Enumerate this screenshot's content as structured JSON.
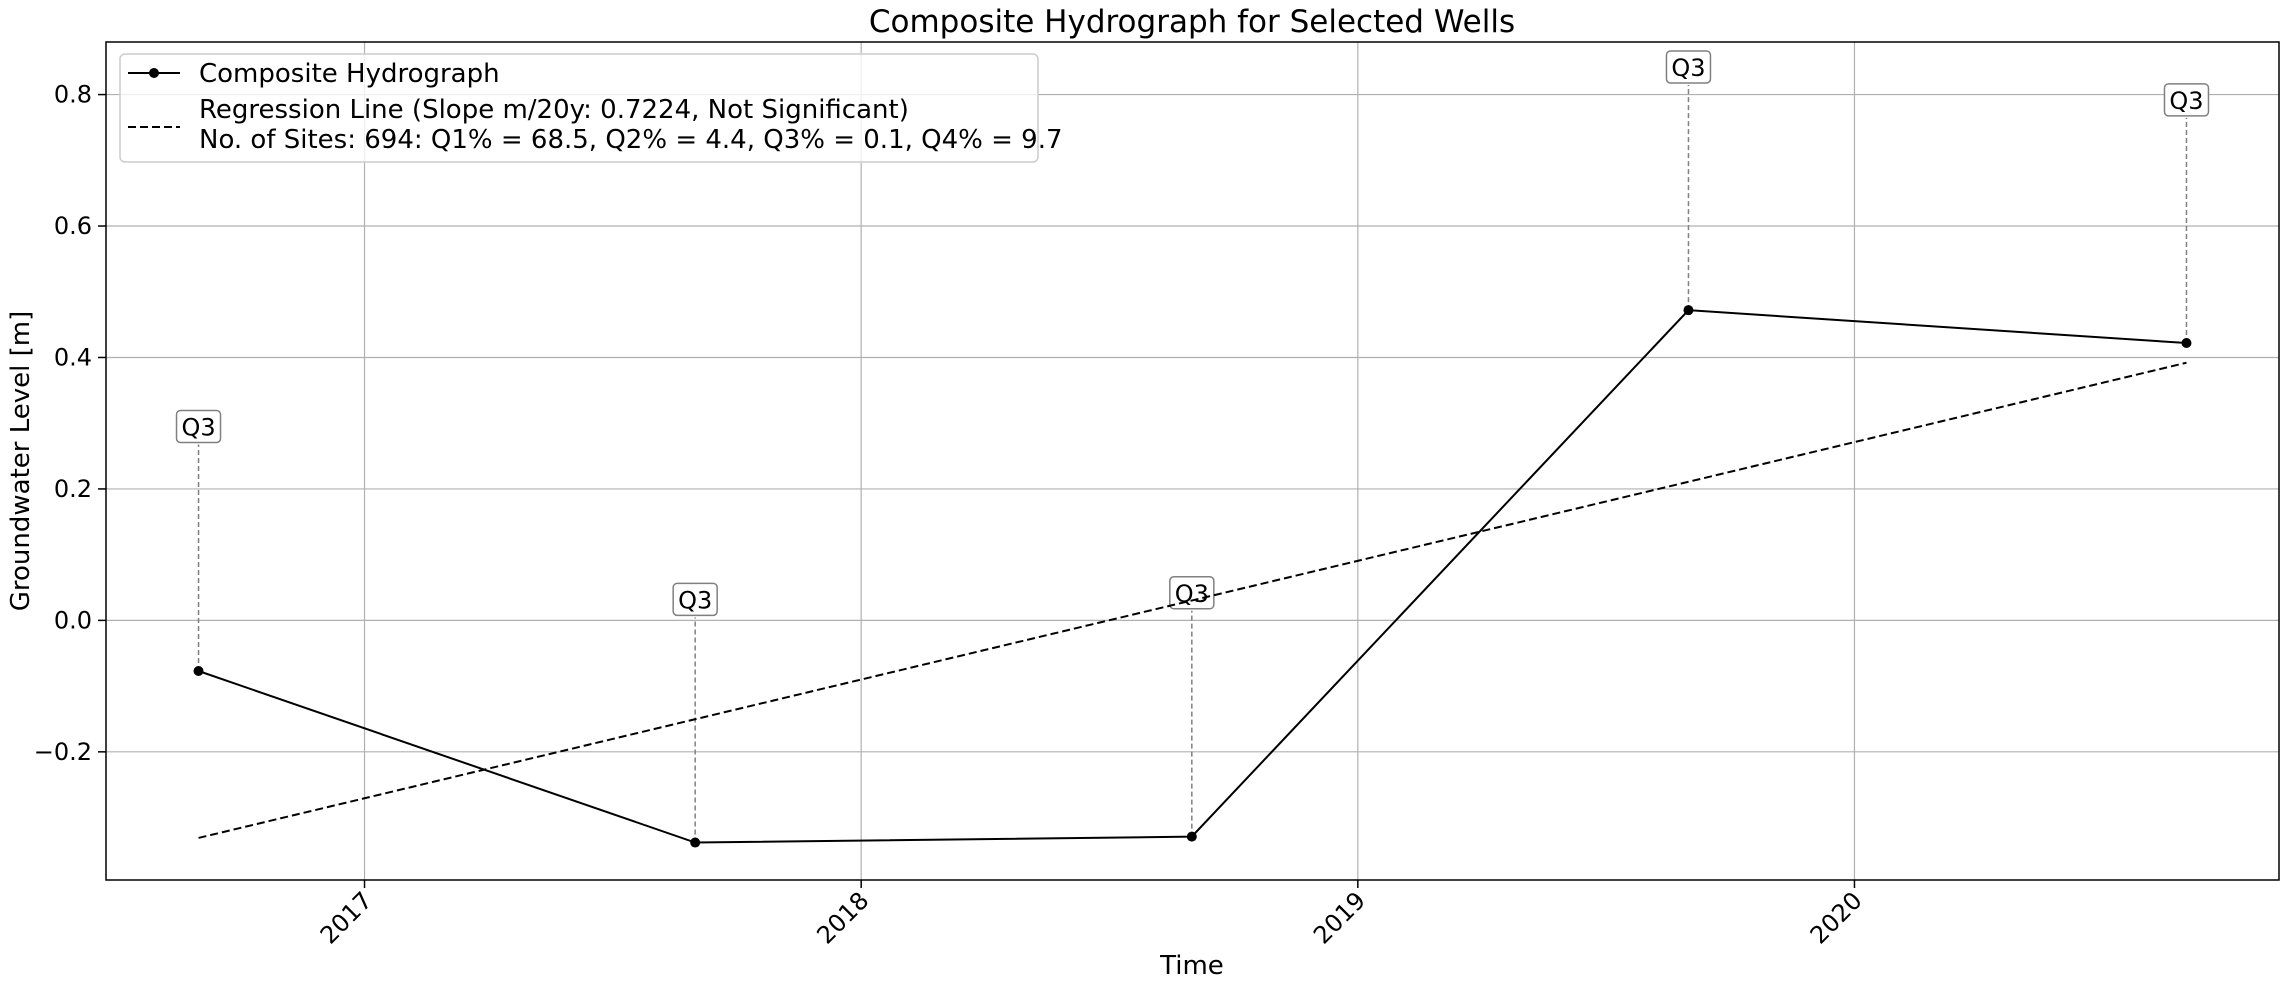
{
  "chart_data": {
    "type": "line",
    "title": "Composite Hydrograph for Selected Wells",
    "xlabel": "Time",
    "ylabel": "Groundwater Level [m]",
    "xlim": [
      "2016-06-25",
      "2020-11-08"
    ],
    "ylim": [
      -0.395,
      0.88
    ],
    "x_ticks": [
      "2017",
      "2018",
      "2019",
      "2020"
    ],
    "y_ticks": [
      -0.2,
      0.0,
      0.2,
      0.4,
      0.6,
      0.8
    ],
    "y_tick_labels": [
      "−0.2",
      "0.0",
      "0.2",
      "0.4",
      "0.6",
      "0.8"
    ],
    "grid": true,
    "legend_position": "top-left",
    "series": [
      {
        "name": "Composite Hydrograph",
        "style": "solid-marker",
        "color": "#000000",
        "x": [
          "2016-09-01",
          "2017-09-01",
          "2018-09-01",
          "2019-09-01",
          "2020-09-01"
        ],
        "y": [
          -0.077,
          -0.338,
          -0.329,
          0.472,
          0.422
        ]
      },
      {
        "name": "Regression Line (Slope m/20y: 0.7224, Not Significant)",
        "style": "dashed",
        "color": "#000000",
        "x": [
          "2016-09-01",
          "2020-09-01"
        ],
        "y": [
          -0.331,
          0.392
        ]
      }
    ],
    "legend_extra": "No. of Sites: 694: Q1% = 68.5, Q2% = 4.4, Q3% = 0.1, Q4% = 9.7",
    "annotations": [
      {
        "x": "2016-09-01",
        "y": -0.077,
        "label_y": 0.295,
        "text": "Q3"
      },
      {
        "x": "2017-09-01",
        "y": -0.338,
        "label_y": 0.032,
        "text": "Q3"
      },
      {
        "x": "2018-09-01",
        "y": -0.329,
        "label_y": 0.042,
        "text": "Q3"
      },
      {
        "x": "2019-09-01",
        "y": 0.472,
        "label_y": 0.842,
        "text": "Q3"
      },
      {
        "x": "2020-09-01",
        "y": 0.422,
        "label_y": 0.792,
        "text": "Q3"
      }
    ]
  }
}
